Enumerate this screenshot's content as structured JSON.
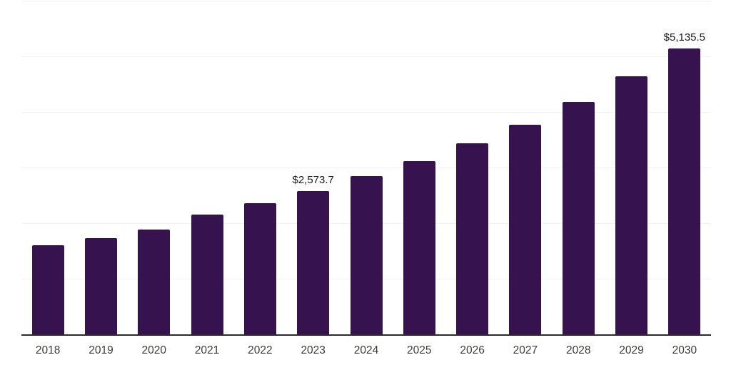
{
  "chart_data": {
    "type": "bar",
    "title": "",
    "xlabel": "",
    "ylabel": "",
    "legend": "none",
    "grid": "horizontal",
    "ylim": [
      0,
      6000
    ],
    "gridline_step": 1000,
    "categories": [
      "2018",
      "2019",
      "2020",
      "2021",
      "2022",
      "2023",
      "2024",
      "2025",
      "2026",
      "2027",
      "2028",
      "2029",
      "2030"
    ],
    "values": [
      1605,
      1735,
      1890,
      2160,
      2360,
      2573.7,
      2845,
      3110,
      3430,
      3770,
      4175,
      4640,
      5135.5
    ],
    "annotations": [
      {
        "category": "2023",
        "text": "$2,573.7"
      },
      {
        "category": "2030",
        "text": "$5,135.5"
      }
    ],
    "colors": {
      "bar": "#36124e",
      "axis_line": "#2b2b2b",
      "gridline": "#f2f2f2",
      "value_label": "#1a1a1a",
      "tick_label": "#3c3c3c",
      "background": "#ffffff"
    }
  }
}
